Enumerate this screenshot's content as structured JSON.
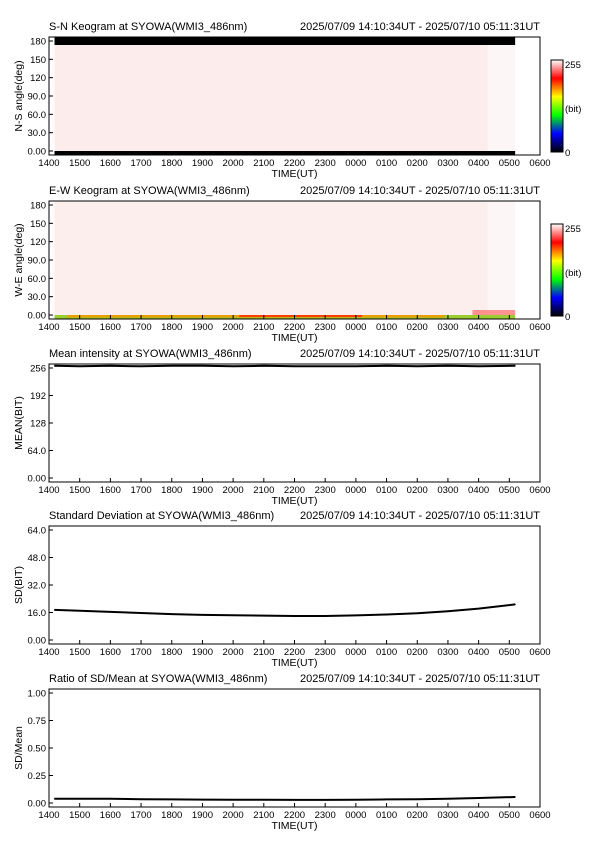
{
  "figure": {
    "x_ticks": [
      "1400",
      "1500",
      "1600",
      "1700",
      "1800",
      "1900",
      "2000",
      "2100",
      "2200",
      "2300",
      "0000",
      "0100",
      "0200",
      "0300",
      "0400",
      "0500",
      "0600"
    ],
    "x_label": "TIME(UT)",
    "time_range": "2025/07/09 14:10:34UT - 2025/07/10 05:11:31UT"
  },
  "colorbar": {
    "max_label": "255",
    "min_label": "0",
    "unit_label": "(bit)",
    "colors": [
      "#000000",
      "#0000ff",
      "#00ff00",
      "#ffff00",
      "#ff0000",
      "#ffffff"
    ]
  },
  "chart_data": [
    {
      "id": "sn",
      "type": "heatmap",
      "title": "S-N Keogram at SYOWA(WMI3_486nm)",
      "ylabel": "N-S angle(deg)",
      "yticks": [
        "180",
        "150",
        "120",
        "90.0",
        "60.0",
        "30.0",
        "0.00"
      ],
      "ylim": [
        0,
        180
      ],
      "x_start_hour": 14.18,
      "x_end_hour": 29.19,
      "bulk_color": "#fcecec",
      "late_color": "#fdf6f6",
      "late_start_hour": 28.3,
      "edge_band_top": "#000000",
      "edge_band_bottom": "#000000"
    },
    {
      "id": "ew",
      "type": "heatmap",
      "title": "E-W Keogram at SYOWA(WMI3_486nm)",
      "ylabel": "W-E angle(deg)",
      "yticks": [
        "180",
        "150",
        "120",
        "90.0",
        "60.0",
        "30.0",
        "0.00"
      ],
      "ylim": [
        0,
        180
      ],
      "x_start_hour": 14.18,
      "x_end_hour": 29.19,
      "bulk_color": "#fdeeee",
      "late_color": "#fdf6f6",
      "late_start_hour": 28.3,
      "bottom_band_colors": [
        "#9acd32",
        "#e8a000",
        "#ff4000",
        "#ff8080"
      ]
    },
    {
      "id": "mean",
      "type": "line",
      "title": "Mean intensity at SYOWA(WMI3_486nm)",
      "ylabel": "MEAN(BIT)",
      "yticks": [
        "256",
        "192",
        "128",
        "64.0",
        "0.00"
      ],
      "ylim": [
        0,
        256
      ],
      "x": [
        14.18,
        15,
        16,
        17,
        18,
        19,
        20,
        21,
        22,
        23,
        24,
        25,
        26,
        27,
        28,
        29.19
      ],
      "y": [
        252,
        251,
        252,
        251,
        252,
        252,
        251,
        252,
        251,
        251,
        251,
        252,
        251,
        252,
        251,
        252
      ]
    },
    {
      "id": "sd",
      "type": "line",
      "title": "Standard Deviation at SYOWA(WMI3_486nm)",
      "ylabel": "SD(BIT)",
      "yticks": [
        "64.0",
        "48.0",
        "32.0",
        "16.0",
        "0.00"
      ],
      "ylim": [
        0,
        64
      ],
      "x": [
        14.18,
        15,
        16,
        17,
        18,
        19,
        20,
        21,
        22,
        23,
        24,
        25,
        26,
        27,
        28,
        29.19
      ],
      "y": [
        18.5,
        18.0,
        17.4,
        16.8,
        16.2,
        15.8,
        15.6,
        15.4,
        15.2,
        15.2,
        15.5,
        16.0,
        16.7,
        17.8,
        19.2,
        21.5
      ]
    },
    {
      "id": "ratio",
      "type": "line",
      "title": "Ratio of SD/Mean at SYOWA(WMI3_486nm)",
      "ylabel": "SD/Mean",
      "yticks": [
        "1.00",
        "0.75",
        "0.50",
        "0.25",
        "0.00"
      ],
      "ylim": [
        0,
        1
      ],
      "x": [
        14.18,
        15,
        16,
        17,
        18,
        19,
        20,
        21,
        22,
        23,
        24,
        25,
        26,
        27,
        28,
        29.19
      ],
      "y": [
        0.07,
        0.07,
        0.07,
        0.066,
        0.064,
        0.063,
        0.062,
        0.061,
        0.06,
        0.06,
        0.062,
        0.064,
        0.066,
        0.07,
        0.076,
        0.085
      ]
    }
  ]
}
